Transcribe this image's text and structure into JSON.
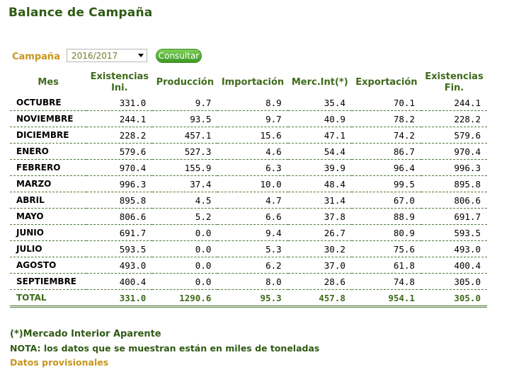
{
  "title": "Balance de Campaña",
  "filter": {
    "label": "Campaña",
    "selected": "2016/2017",
    "button": "Consultar"
  },
  "table": {
    "headers": [
      "Mes",
      "Existencias\nIni.",
      "Producción",
      "Importación",
      "Merc.Int(*)",
      "Exportación",
      "Existencias\nFin."
    ],
    "rows": [
      [
        "OCTUBRE",
        "331.0",
        "9.7",
        "8.9",
        "35.4",
        "70.1",
        "244.1"
      ],
      [
        "NOVIEMBRE",
        "244.1",
        "93.5",
        "9.7",
        "40.9",
        "78.2",
        "228.2"
      ],
      [
        "DICIEMBRE",
        "228.2",
        "457.1",
        "15.6",
        "47.1",
        "74.2",
        "579.6"
      ],
      [
        "ENERO",
        "579.6",
        "527.3",
        "4.6",
        "54.4",
        "86.7",
        "970.4"
      ],
      [
        "FEBRERO",
        "970.4",
        "155.9",
        "6.3",
        "39.9",
        "96.4",
        "996.3"
      ],
      [
        "MARZO",
        "996.3",
        "37.4",
        "10.0",
        "48.4",
        "99.5",
        "895.8"
      ],
      [
        "ABRIL",
        "895.8",
        "4.5",
        "4.7",
        "31.4",
        "67.0",
        "806.6"
      ],
      [
        "MAYO",
        "806.6",
        "5.2",
        "6.6",
        "37.8",
        "88.9",
        "691.7"
      ],
      [
        "JUNIO",
        "691.7",
        "0.0",
        "9.4",
        "26.7",
        "80.9",
        "593.5"
      ],
      [
        "JULIO",
        "593.5",
        "0.0",
        "5.3",
        "30.2",
        "75.6",
        "493.0"
      ],
      [
        "AGOSTO",
        "493.0",
        "0.0",
        "6.2",
        "37.0",
        "61.8",
        "400.4"
      ],
      [
        "SEPTIEMBRE",
        "400.4",
        "0.0",
        "8.0",
        "28.6",
        "74.8",
        "305.0"
      ]
    ],
    "total": [
      "TOTAL",
      "331.0",
      "1290.6",
      "95.3",
      "457.8",
      "954.1",
      "305.0"
    ]
  },
  "notes": {
    "mercado": "(*)Mercado Interior Aparente",
    "nota": "NOTA: los datos que se muestran están en miles de toneladas",
    "provisional": "Datos provisionales"
  },
  "colors": {
    "green_dark": "#2f5a13",
    "green_header": "#3f6a1b",
    "gold": "#c8951b",
    "button_green": "#3c9a25"
  }
}
